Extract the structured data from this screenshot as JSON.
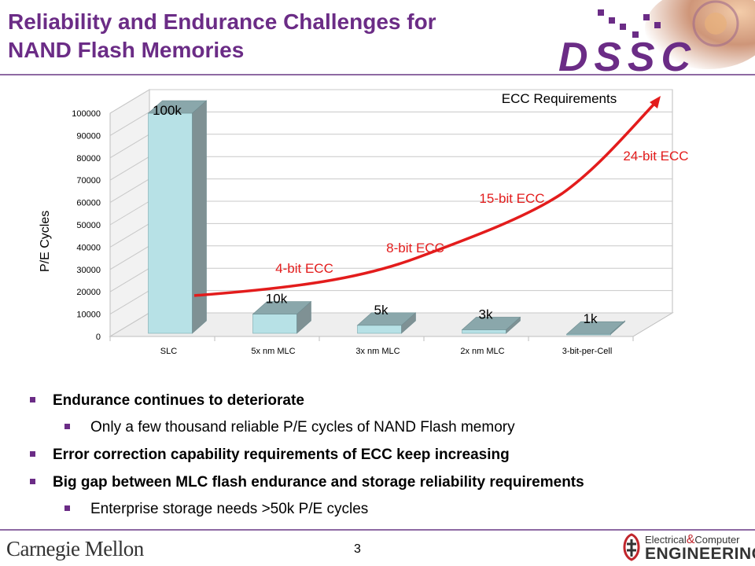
{
  "slide": {
    "title_line1": "Reliability and Endurance Challenges for",
    "title_line2": "NAND Flash Memories",
    "logo_text": "DSSC",
    "page_number": "3",
    "footer_left": "Carnegie Mellon",
    "footer_right_line1_a": "Electrical",
    "footer_right_line1_amp": "&",
    "footer_right_line1_b": "Computer",
    "footer_right_line2": "ENGINEERING"
  },
  "bullets": [
    {
      "level": 1,
      "text": "Endurance continues to deteriorate"
    },
    {
      "level": 2,
      "text": "Only a few thousand reliable P/E cycles of NAND Flash memory"
    },
    {
      "level": 1,
      "text": "Error correction capability requirements of ECC keep increasing"
    },
    {
      "level": 1,
      "text": "Big gap between MLC flash endurance and storage reliability requirements"
    },
    {
      "level": 2,
      "text": "Enterprise storage needs >50k P/E cycles"
    }
  ],
  "chart_data": {
    "type": "bar",
    "ylabel": "P/E Cycles",
    "xlabel": "",
    "ylim": [
      0,
      100000
    ],
    "yticks": [
      "0",
      "10000",
      "20000",
      "30000",
      "40000",
      "50000",
      "60000",
      "70000",
      "80000",
      "90000",
      "100000"
    ],
    "categories": [
      "SLC",
      "5x nm MLC",
      "3x nm MLC",
      "2x nm MLC",
      "3-bit-per-Cell"
    ],
    "values": [
      100000,
      10000,
      5000,
      3000,
      1000
    ],
    "data_labels": [
      "100k",
      "10k",
      "5k",
      "3k",
      "1k"
    ],
    "bar_color": "#b7e1e6",
    "ecc_curve": {
      "label": "ECC Requirements",
      "color": "#e31c1c",
      "annotations": [
        "4-bit ECC",
        "8-bit ECC",
        "15-bit ECC",
        "24-bit ECC"
      ]
    }
  }
}
